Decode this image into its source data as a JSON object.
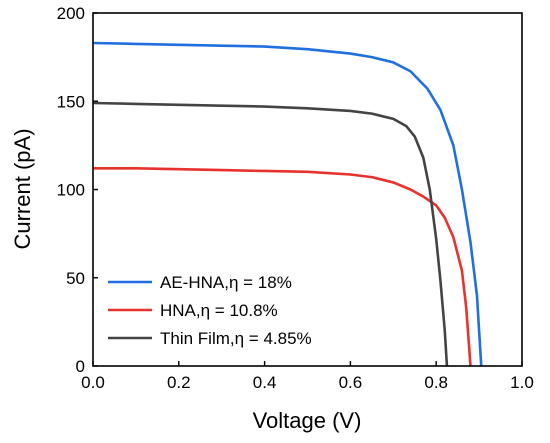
{
  "chart_data": {
    "type": "line",
    "xlabel": "Voltage (V)",
    "ylabel": "Current (pA)",
    "xlim": [
      0,
      1.0
    ],
    "ylim": [
      0,
      200
    ],
    "xticks": [
      0.0,
      0.2,
      0.4,
      0.6,
      0.8,
      1.0
    ],
    "xtick_labels": [
      "0.0",
      "0.2",
      "0.4",
      "0.6",
      "0.8",
      "1.0"
    ],
    "yticks": [
      0,
      50,
      100,
      150,
      200
    ],
    "ytick_labels": [
      "0",
      "50",
      "100",
      "150",
      "200"
    ],
    "grid": false,
    "legend_position": "bottom-left",
    "series": [
      {
        "name": "AE-HNA,η = 18%",
        "color": "#1f6fe0",
        "x": [
          0.0,
          0.1,
          0.2,
          0.3,
          0.4,
          0.5,
          0.6,
          0.65,
          0.7,
          0.74,
          0.78,
          0.81,
          0.84,
          0.86,
          0.88,
          0.895,
          0.905
        ],
        "y": [
          183,
          182.5,
          182,
          181.5,
          181,
          179.5,
          177,
          175,
          172,
          167,
          157,
          145,
          125,
          100,
          70,
          40,
          0
        ]
      },
      {
        "name": "HNA,η = 10.8%",
        "color": "#e8322e",
        "x": [
          0.0,
          0.1,
          0.2,
          0.3,
          0.4,
          0.5,
          0.6,
          0.65,
          0.7,
          0.74,
          0.77,
          0.8,
          0.82,
          0.84,
          0.86,
          0.87,
          0.88
        ],
        "y": [
          112,
          112,
          111.5,
          111,
          110.5,
          110,
          108.5,
          107,
          104,
          100,
          96,
          91,
          84,
          73,
          54,
          33,
          0
        ]
      },
      {
        "name": "Thin Film,η = 4.85%",
        "color": "#444444",
        "x": [
          0.0,
          0.1,
          0.2,
          0.3,
          0.4,
          0.5,
          0.6,
          0.65,
          0.7,
          0.73,
          0.75,
          0.77,
          0.785,
          0.8,
          0.81,
          0.82,
          0.825
        ],
        "y": [
          149,
          148.5,
          148,
          147.5,
          147,
          146,
          144.5,
          143,
          140,
          136,
          130,
          118,
          100,
          72,
          48,
          20,
          0
        ]
      }
    ]
  }
}
